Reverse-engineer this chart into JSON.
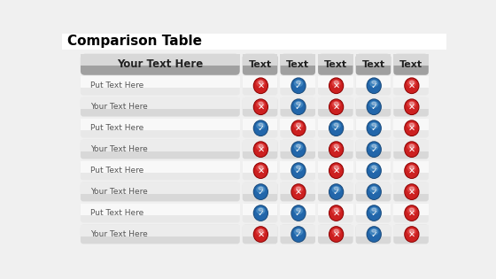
{
  "title": "Comparison Table",
  "header_label": "Your Text Here",
  "col_headers": [
    "Text",
    "Text",
    "Text",
    "Text",
    "Text"
  ],
  "row_labels": [
    "Put Text Here",
    "Your Text Here",
    "Put Text Here",
    "Your Text Here",
    "Put Text Here",
    "Your Text Here",
    "Put Text Here",
    "Your Text Here"
  ],
  "icons": [
    [
      "X",
      "C",
      "X",
      "C",
      "X"
    ],
    [
      "X",
      "C",
      "X",
      "C",
      "X"
    ],
    [
      "C",
      "X",
      "C",
      "C",
      "X"
    ],
    [
      "X",
      "C",
      "X",
      "C",
      "X"
    ],
    [
      "X",
      "C",
      "X",
      "C",
      "X"
    ],
    [
      "C",
      "X",
      "C",
      "C",
      "X"
    ],
    [
      "C",
      "C",
      "X",
      "C",
      "X"
    ],
    [
      "X",
      "C",
      "X",
      "C",
      "X"
    ]
  ],
  "fig_bg": "#f0f0f0",
  "title_bg": "#ffffff",
  "table_bg": "#e4e4e4",
  "header_cell_top": "#d8d8d8",
  "header_cell_bot": "#a8a8a8",
  "row_odd_color": "#f5f5f5",
  "row_even_color": "#e8e8e8",
  "icon_cell_color": "#e0e0e0",
  "red_top": "#e04040",
  "red_bot": "#9a1515",
  "blue_top": "#70b0e0",
  "blue_bot": "#2060a0",
  "title_fontsize": 11,
  "header_fontsize": 8.5,
  "row_label_fontsize": 6.5,
  "col_header_fontsize": 8
}
